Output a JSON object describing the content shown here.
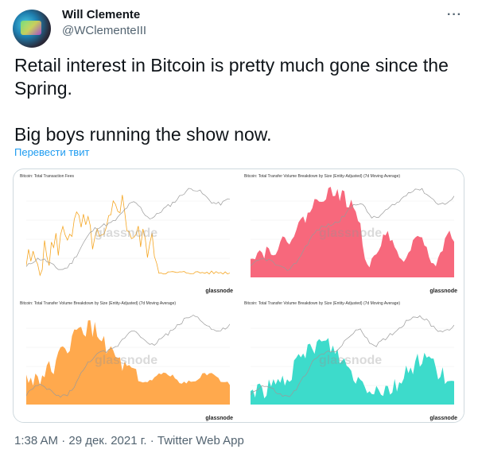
{
  "author": {
    "name": "Will Clemente",
    "handle": "@WClementeIII",
    "more_icon": "more-horizontal-icon"
  },
  "tweet": {
    "text": "Retail interest in Bitcoin is pretty much gone since the\nSpring.\n\nBig boys running the show now.",
    "translate_label": "Перевести твит"
  },
  "charts": [
    {
      "title": "Bitcoin: Total Transaction Fees",
      "color": "#f5a623",
      "brand": "glassnode",
      "watermark": "glassnode"
    },
    {
      "title": "Bitcoin: Total Transfer Volume Breakdown by Size (Entity-Adjusted) (7d Moving Average)",
      "color": "#f7687c",
      "brand": "glassnode",
      "watermark": "glassnode"
    },
    {
      "title": "Bitcoin: Total Transfer Volume Breakdown by Size (Entity-Adjusted) (7d Moving Average)",
      "color": "#ffa94d",
      "brand": "glassnode",
      "watermark": "glassnode"
    },
    {
      "title": "Bitcoin: Total Transfer Volume Breakdown by Size (Entity-Adjusted) (7d Moving Average)",
      "color": "#3ddbcb",
      "brand": "glassnode",
      "watermark": "glassnode"
    }
  ],
  "footer": {
    "timestamp": "1:38 AM · 29 дек. 2021 г. · Twitter Web App"
  }
}
